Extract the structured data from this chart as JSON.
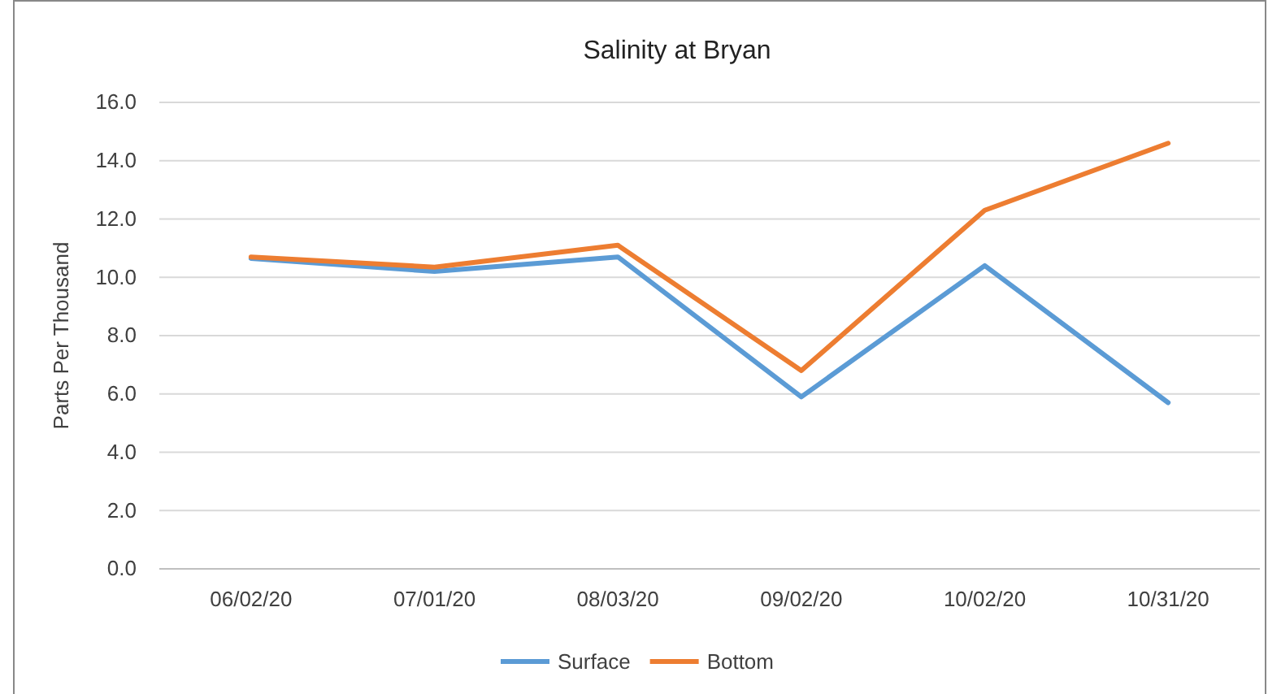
{
  "chart_data": {
    "type": "line",
    "title": "Salinity at Bryan",
    "ylabel": "Parts Per Thousand",
    "categories": [
      "06/02/20",
      "07/01/20",
      "08/03/20",
      "09/02/20",
      "10/02/20",
      "10/31/20"
    ],
    "series": [
      {
        "name": "Surface",
        "color": "#5b9bd5",
        "values": [
          10.65,
          10.2,
          10.7,
          5.9,
          10.4,
          5.7
        ]
      },
      {
        "name": "Bottom",
        "color": "#ed7d31",
        "values": [
          10.7,
          10.35,
          11.1,
          6.8,
          12.3,
          14.6
        ]
      }
    ],
    "ylim": [
      0,
      16
    ],
    "yticks": [
      {
        "value": 0,
        "label": "0.0"
      },
      {
        "value": 2,
        "label": "2.0"
      },
      {
        "value": 4,
        "label": "4.0"
      },
      {
        "value": 6,
        "label": "6.0"
      },
      {
        "value": 8,
        "label": "8.0"
      },
      {
        "value": 10,
        "label": "10.0"
      },
      {
        "value": 12,
        "label": "12.0"
      },
      {
        "value": 14,
        "label": "14.0"
      },
      {
        "value": 16,
        "label": "16.0"
      }
    ],
    "grid": "y",
    "legend": "bottom",
    "marker": "none",
    "line_style": "solid"
  }
}
